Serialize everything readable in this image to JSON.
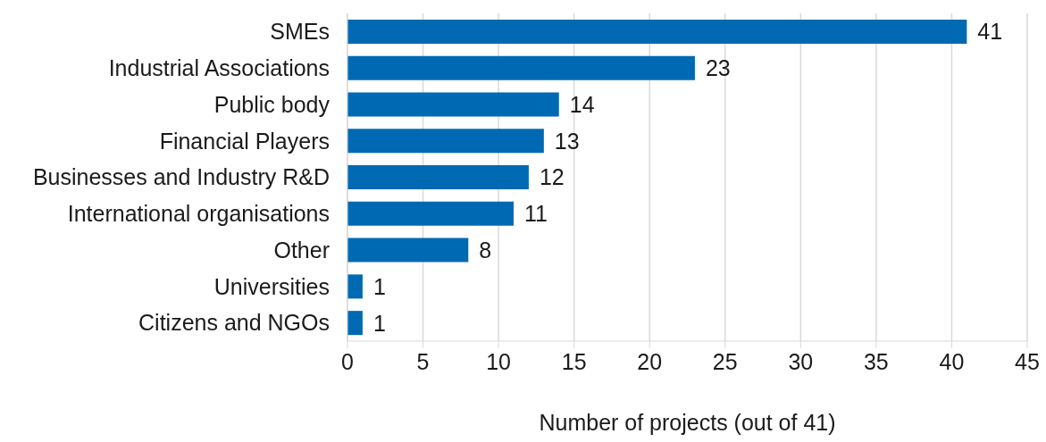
{
  "chart_data": {
    "type": "bar",
    "orientation": "horizontal",
    "categories": [
      "SMEs",
      "Industrial Associations",
      "Public body",
      "Financial Players",
      "Businesses and Industry R&D",
      "International organisations",
      "Other",
      "Universities",
      "Citizens and NGOs"
    ],
    "values": [
      41,
      23,
      14,
      13,
      12,
      11,
      8,
      1,
      1
    ],
    "color": "#0069b4",
    "xlim": [
      0,
      45
    ],
    "xticks": [
      0,
      5,
      10,
      15,
      20,
      25,
      30,
      35,
      40,
      45
    ],
    "xlabel": "Number of projects (out of 41)",
    "grid": "x",
    "data_labels": true
  }
}
